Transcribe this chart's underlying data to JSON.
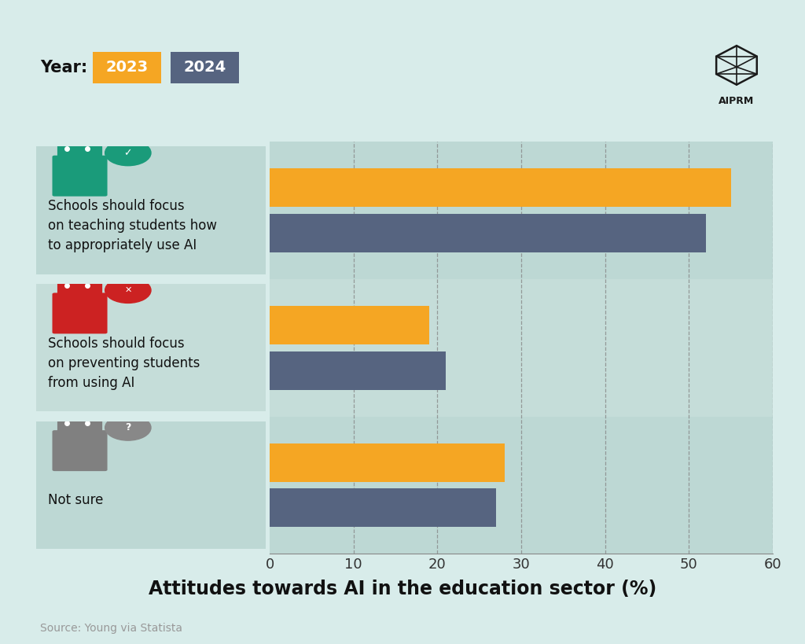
{
  "categories": [
    "Schools should focus\non teaching students how\nto appropriately use AI",
    "Schools should focus\non preventing students\nfrom using AI",
    "Not sure"
  ],
  "values_2023": [
    55,
    19,
    28
  ],
  "values_2024": [
    52,
    21,
    27
  ],
  "color_2023": "#F5A623",
  "color_2024": "#566480",
  "bg_color": "#D8ECEA",
  "panel_bg": [
    "#C5DDD9",
    "#C5DDD9",
    "#C5DDD9"
  ],
  "title": "Attitudes towards AI in the education sector (%)",
  "source": "Source: Young via Statista",
  "xlim": [
    0,
    60
  ],
  "xticks": [
    0,
    10,
    20,
    30,
    40,
    50,
    60
  ],
  "year_label": "Year:",
  "legend_2023": "2023",
  "legend_2024": "2024",
  "title_fontsize": 17,
  "tick_fontsize": 13,
  "label_fontsize": 12,
  "source_fontsize": 10,
  "robot_colors": [
    "#1A9B7A",
    "#CC2222",
    "#808080"
  ],
  "badge_colors": [
    "#1A9B7A",
    "#CC2222",
    "#888888"
  ]
}
